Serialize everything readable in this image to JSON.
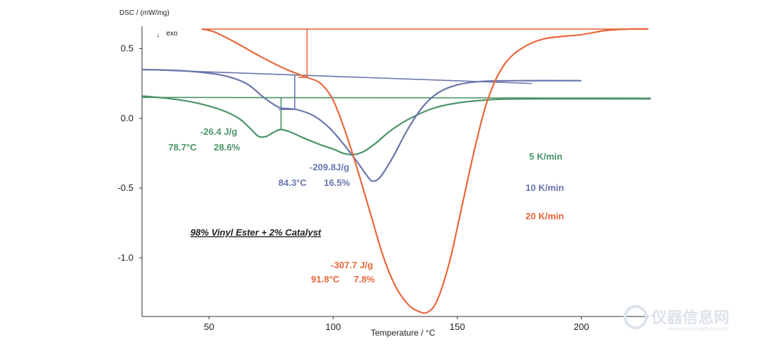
{
  "watermark": {
    "text": "仪器信息网",
    "sub": "www.instrument.com.cn"
  },
  "chart_data": {
    "type": "line",
    "ylabel": "DSC / (mW/mg)",
    "xlabel": "Temperature / °C",
    "direction_label": "exo",
    "xlim": [
      23,
      227
    ],
    "ylim": [
      -1.42,
      0.66
    ],
    "xticks": [
      50,
      100,
      150,
      200
    ],
    "yticks": [
      0.5,
      0.0,
      -0.5,
      -1.0
    ],
    "xtick_labels": [
      "50",
      "100",
      "150",
      "200"
    ],
    "ytick_labels": [
      "0.5",
      "0.0",
      "-0.5",
      "-1.0"
    ],
    "note": "98% Vinyl Ester + 2% Catalyst",
    "series": [
      {
        "name": "5 K/min",
        "color": "#4a9466",
        "points": [
          [
            23,
            0.16
          ],
          [
            35,
            0.14
          ],
          [
            45,
            0.11
          ],
          [
            55,
            0.06
          ],
          [
            62,
            0.0
          ],
          [
            67,
            -0.08
          ],
          [
            70,
            -0.13
          ],
          [
            73,
            -0.13
          ],
          [
            76,
            -0.1
          ],
          [
            79,
            -0.08
          ],
          [
            83,
            -0.1
          ],
          [
            88,
            -0.14
          ],
          [
            95,
            -0.19
          ],
          [
            100,
            -0.22
          ],
          [
            104,
            -0.25
          ],
          [
            108,
            -0.26
          ],
          [
            112,
            -0.24
          ],
          [
            117,
            -0.18
          ],
          [
            123,
            -0.09
          ],
          [
            130,
            -0.01
          ],
          [
            140,
            0.07
          ],
          [
            150,
            0.11
          ],
          [
            165,
            0.135
          ],
          [
            185,
            0.14
          ],
          [
            228,
            0.14
          ]
        ],
        "baseline": [
          [
            23,
            0.15
          ],
          [
            228,
            0.145
          ]
        ],
        "annotations": [
          "-26.4 J/g",
          "78.7°C",
          "28.6%"
        ]
      },
      {
        "name": "10 K/min",
        "color": "#6a76ad",
        "points": [
          [
            23,
            0.35
          ],
          [
            40,
            0.34
          ],
          [
            55,
            0.31
          ],
          [
            65,
            0.25
          ],
          [
            72,
            0.15
          ],
          [
            78,
            0.08
          ],
          [
            82,
            0.07
          ],
          [
            86,
            0.06
          ],
          [
            92,
            0.02
          ],
          [
            98,
            -0.06
          ],
          [
            104,
            -0.18
          ],
          [
            110,
            -0.32
          ],
          [
            114,
            -0.42
          ],
          [
            116,
            -0.45
          ],
          [
            119,
            -0.42
          ],
          [
            124,
            -0.28
          ],
          [
            130,
            -0.08
          ],
          [
            136,
            0.08
          ],
          [
            142,
            0.18
          ],
          [
            150,
            0.24
          ],
          [
            160,
            0.265
          ],
          [
            175,
            0.27
          ],
          [
            200,
            0.27
          ]
        ],
        "baseline": [
          [
            23,
            0.35
          ],
          [
            180,
            0.25
          ]
        ],
        "annotations": [
          "-209.8J/g",
          "84.3°C",
          "16.5%"
        ]
      },
      {
        "name": "20 K/min",
        "color": "#e8683c",
        "points": [
          [
            47,
            0.64
          ],
          [
            52,
            0.62
          ],
          [
            60,
            0.55
          ],
          [
            70,
            0.45
          ],
          [
            80,
            0.36
          ],
          [
            87,
            0.31
          ],
          [
            90,
            0.29
          ],
          [
            95,
            0.25
          ],
          [
            100,
            0.13
          ],
          [
            105,
            -0.1
          ],
          [
            110,
            -0.38
          ],
          [
            115,
            -0.68
          ],
          [
            120,
            -0.98
          ],
          [
            125,
            -1.2
          ],
          [
            130,
            -1.33
          ],
          [
            134,
            -1.38
          ],
          [
            138,
            -1.39
          ],
          [
            142,
            -1.3
          ],
          [
            147,
            -1.02
          ],
          [
            152,
            -0.62
          ],
          [
            157,
            -0.22
          ],
          [
            162,
            0.12
          ],
          [
            168,
            0.36
          ],
          [
            175,
            0.49
          ],
          [
            185,
            0.57
          ],
          [
            200,
            0.6
          ],
          [
            210,
            0.63
          ],
          [
            220,
            0.64
          ],
          [
            227,
            0.64
          ]
        ],
        "baseline": [
          [
            47,
            0.64
          ],
          [
            227,
            0.64
          ]
        ],
        "annotations": [
          "-307.7 J/g",
          "91.8°C",
          "7.8%"
        ]
      }
    ]
  }
}
